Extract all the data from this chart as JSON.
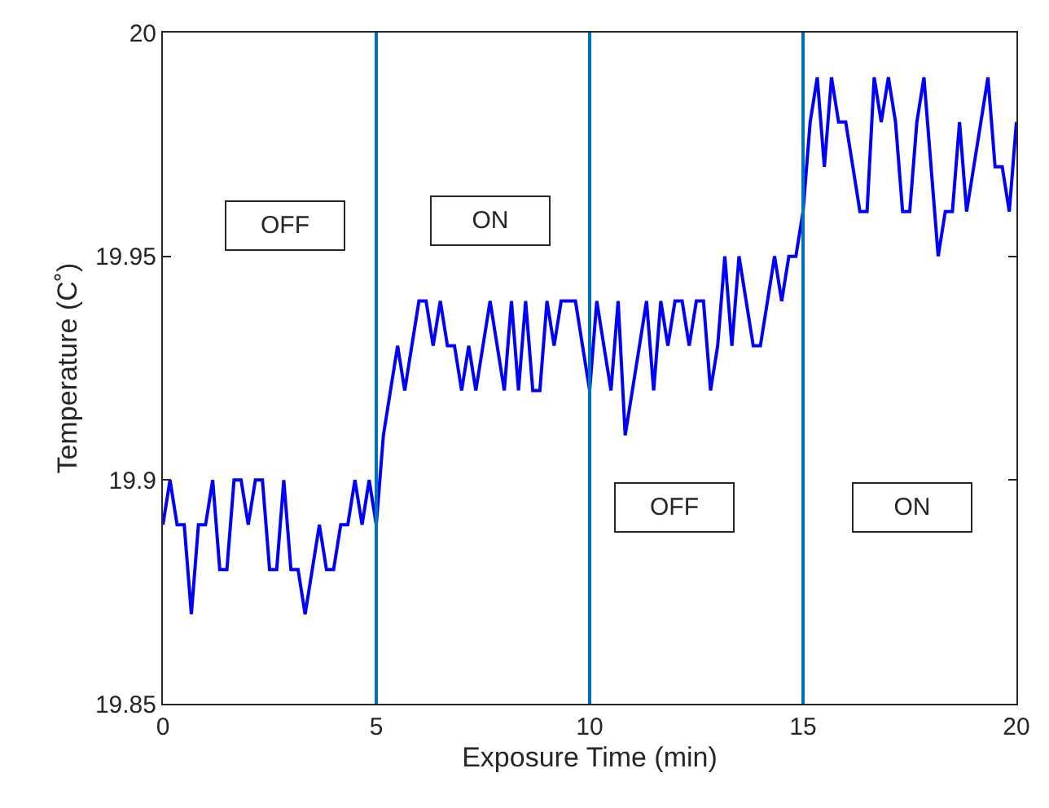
{
  "chart_data": {
    "type": "line",
    "xlabel": "Exposure Time (min)",
    "ylabel": "Temperature (C˚)",
    "x": [
      0,
      0.167,
      0.333,
      0.5,
      0.667,
      0.833,
      1,
      1.167,
      1.333,
      1.5,
      1.667,
      1.833,
      2,
      2.167,
      2.333,
      2.5,
      2.667,
      2.833,
      3,
      3.167,
      3.333,
      3.5,
      3.667,
      3.833,
      4,
      4.167,
      4.333,
      4.5,
      4.667,
      4.833,
      5,
      5.167,
      5.333,
      5.5,
      5.667,
      5.833,
      6,
      6.167,
      6.333,
      6.5,
      6.667,
      6.833,
      7,
      7.167,
      7.333,
      7.5,
      7.667,
      7.833,
      8,
      8.167,
      8.333,
      8.5,
      8.667,
      8.833,
      9,
      9.167,
      9.333,
      9.5,
      9.667,
      9.833,
      10,
      10.167,
      10.333,
      10.5,
      10.667,
      10.833,
      11,
      11.167,
      11.333,
      11.5,
      11.667,
      11.833,
      12,
      12.167,
      12.333,
      12.5,
      12.667,
      12.833,
      13,
      13.167,
      13.333,
      13.5,
      13.667,
      13.833,
      14,
      14.167,
      14.333,
      14.5,
      14.667,
      14.833,
      15,
      15.167,
      15.333,
      15.5,
      15.667,
      15.833,
      16,
      16.167,
      16.333,
      16.5,
      16.667,
      16.833,
      17,
      17.167,
      17.333,
      17.5,
      17.667,
      17.833,
      18,
      18.167,
      18.333,
      18.5,
      18.667,
      18.833,
      19,
      19.167,
      19.333,
      19.5,
      19.667,
      19.833,
      20
    ],
    "series": [
      {
        "color": "#0000ff",
        "values": [
          19.89,
          19.9,
          19.89,
          19.89,
          19.87,
          19.89,
          19.89,
          19.9,
          19.88,
          19.88,
          19.9,
          19.9,
          19.89,
          19.9,
          19.9,
          19.88,
          19.88,
          19.9,
          19.88,
          19.88,
          19.87,
          19.88,
          19.89,
          19.88,
          19.88,
          19.89,
          19.89,
          19.9,
          19.89,
          19.9,
          19.89,
          19.91,
          19.92,
          19.93,
          19.92,
          19.93,
          19.94,
          19.94,
          19.93,
          19.94,
          19.93,
          19.93,
          19.92,
          19.93,
          19.92,
          19.93,
          19.94,
          19.93,
          19.92,
          19.94,
          19.92,
          19.94,
          19.92,
          19.92,
          19.94,
          19.93,
          19.94,
          19.94,
          19.94,
          19.93,
          19.92,
          19.94,
          19.93,
          19.92,
          19.94,
          19.91,
          19.92,
          19.93,
          19.94,
          19.92,
          19.94,
          19.93,
          19.94,
          19.94,
          19.93,
          19.94,
          19.94,
          19.92,
          19.93,
          19.95,
          19.93,
          19.95,
          19.94,
          19.93,
          19.93,
          19.94,
          19.95,
          19.94,
          19.95,
          19.95,
          19.96,
          19.98,
          19.99,
          19.97,
          19.99,
          19.98,
          19.98,
          19.97,
          19.96,
          19.96,
          19.99,
          19.98,
          19.99,
          19.98,
          19.96,
          19.96,
          19.98,
          19.99,
          19.97,
          19.95,
          19.96,
          19.96,
          19.98,
          19.96,
          19.97,
          19.98,
          19.99,
          19.97,
          19.97,
          19.96,
          19.98
        ]
      }
    ],
    "xlim": [
      0,
      20
    ],
    "xticks": [
      0,
      5,
      10,
      15,
      20
    ],
    "ylim": [
      19.85,
      20
    ],
    "yticks": [
      19.85,
      19.9,
      19.95,
      20
    ],
    "ref_lines": [
      {
        "axis": "x",
        "value": 5,
        "color": "#0072bd"
      },
      {
        "axis": "x",
        "value": 10,
        "color": "#0072bd"
      },
      {
        "axis": "x",
        "value": 15,
        "color": "#0072bd"
      }
    ],
    "annotations": [
      "OFF",
      "ON",
      "OFF",
      "ON"
    ],
    "marker": "none",
    "line_style": "solid"
  }
}
